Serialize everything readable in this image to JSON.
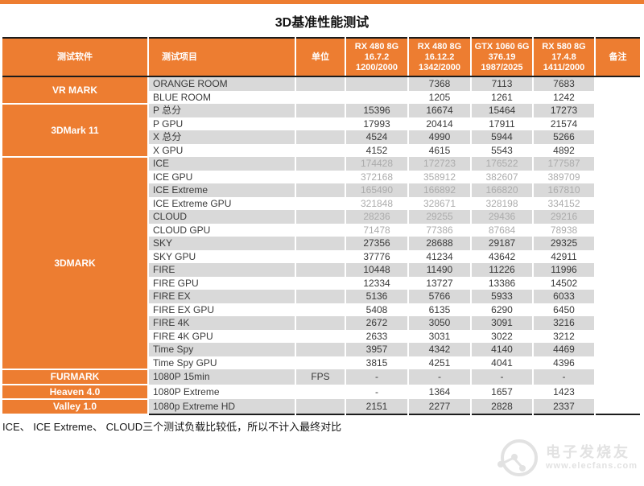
{
  "title": "3D基准性能测试",
  "footnote": "ICE、 ICE Extreme、 CLOUD三个测试负载比较低，所以不计入最终对比",
  "watermark": {
    "brand": "电子发烧友",
    "site": "www.elecfans.com"
  },
  "colors": {
    "accent": "#ED7D31",
    "stripe": "#D9D9D9",
    "muted_text": "#ACACAC",
    "text": "#3A3A3A"
  },
  "chart_data": {
    "type": "table",
    "title": "3D基准性能测试",
    "footnote": "ICE、 ICE Extreme、 CLOUD三个测试负载比较低，所以不计入最终对比",
    "columns": {
      "software": "测试软件",
      "item": "测试项目",
      "unit": "单位",
      "remark": "备注",
      "gpus": [
        [
          "RX 480 8G",
          "16.7.2",
          "1200/2000"
        ],
        [
          "RX 480 8G",
          "16.12.2",
          "1342/2000"
        ],
        [
          "GTX 1060 6G",
          "376.19",
          "1987/2025"
        ],
        [
          "RX 580 8G",
          "17.4.8",
          "1411/2000"
        ]
      ]
    },
    "groups": [
      {
        "software": "VR MARK",
        "rows": [
          {
            "item": "ORANGE ROOM",
            "unit": "",
            "values": [
              "",
              "7368",
              "7113",
              "7683"
            ],
            "muted": false
          },
          {
            "item": "BLUE ROOM",
            "unit": "",
            "values": [
              "",
              "1205",
              "1261",
              "1242"
            ],
            "muted": false
          }
        ]
      },
      {
        "software": "3DMark 11",
        "rows": [
          {
            "item": "P 总分",
            "unit": "",
            "values": [
              "15396",
              "16674",
              "15464",
              "17273"
            ],
            "muted": false
          },
          {
            "item": "P GPU",
            "unit": "",
            "values": [
              "17993",
              "20414",
              "17911",
              "21574"
            ],
            "muted": false
          },
          {
            "item": "X 总分",
            "unit": "",
            "values": [
              "4524",
              "4990",
              "5944",
              "5266"
            ],
            "muted": false
          },
          {
            "item": "X GPU",
            "unit": "",
            "values": [
              "4152",
              "4615",
              "5543",
              "4892"
            ],
            "muted": false
          }
        ]
      },
      {
        "software": "3DMARK",
        "rows": [
          {
            "item": "ICE",
            "unit": "",
            "values": [
              "174428",
              "172723",
              "176522",
              "177587"
            ],
            "muted": true
          },
          {
            "item": "ICE GPU",
            "unit": "",
            "values": [
              "372168",
              "358912",
              "382607",
              "389709"
            ],
            "muted": true
          },
          {
            "item": "ICE Extreme",
            "unit": "",
            "values": [
              "165490",
              "166892",
              "166820",
              "167810"
            ],
            "muted": true
          },
          {
            "item": "ICE Extreme GPU",
            "unit": "",
            "values": [
              "321848",
              "328671",
              "328198",
              "334152"
            ],
            "muted": true
          },
          {
            "item": "CLOUD",
            "unit": "",
            "values": [
              "28236",
              "29255",
              "29436",
              "29216"
            ],
            "muted": true
          },
          {
            "item": "CLOUD GPU",
            "unit": "",
            "values": [
              "71478",
              "77386",
              "87684",
              "78938"
            ],
            "muted": true
          },
          {
            "item": "SKY",
            "unit": "",
            "values": [
              "27356",
              "28688",
              "29187",
              "29325"
            ],
            "muted": false
          },
          {
            "item": "SKY GPU",
            "unit": "",
            "values": [
              "37776",
              "41234",
              "43642",
              "42911"
            ],
            "muted": false
          },
          {
            "item": "FIRE",
            "unit": "",
            "values": [
              "10448",
              "11490",
              "11226",
              "11996"
            ],
            "muted": false
          },
          {
            "item": "FIRE GPU",
            "unit": "",
            "values": [
              "12334",
              "13727",
              "13386",
              "14502"
            ],
            "muted": false
          },
          {
            "item": "FIRE EX",
            "unit": "",
            "values": [
              "5136",
              "5766",
              "5933",
              "6033"
            ],
            "muted": false
          },
          {
            "item": "FIRE EX GPU",
            "unit": "",
            "values": [
              "5408",
              "6135",
              "6290",
              "6450"
            ],
            "muted": false
          },
          {
            "item": "FIRE 4K",
            "unit": "",
            "values": [
              "2672",
              "3050",
              "3091",
              "3216"
            ],
            "muted": false
          },
          {
            "item": "FIRE 4K GPU",
            "unit": "",
            "values": [
              "2633",
              "3031",
              "3022",
              "3212"
            ],
            "muted": false
          },
          {
            "item": "Time Spy",
            "unit": "",
            "values": [
              "3957",
              "4342",
              "4140",
              "4469"
            ],
            "muted": false
          },
          {
            "item": "Time Spy GPU",
            "unit": "",
            "values": [
              "3815",
              "4251",
              "4041",
              "4396"
            ],
            "muted": false
          }
        ]
      },
      {
        "software": "FURMARK",
        "rows": [
          {
            "item": "1080P 15min",
            "unit": "FPS",
            "values": [
              "-",
              "-",
              "-",
              "-"
            ],
            "muted": false
          }
        ]
      },
      {
        "software": "Heaven 4.0",
        "rows": [
          {
            "item": "1080P Extreme",
            "unit": "",
            "values": [
              "-",
              "1364",
              "1657",
              "1423"
            ],
            "muted": false
          }
        ]
      },
      {
        "software": "Valley 1.0",
        "rows": [
          {
            "item": "1080p Extreme HD",
            "unit": "",
            "values": [
              "2151",
              "2277",
              "2828",
              "2337"
            ],
            "muted": false
          }
        ]
      }
    ]
  }
}
